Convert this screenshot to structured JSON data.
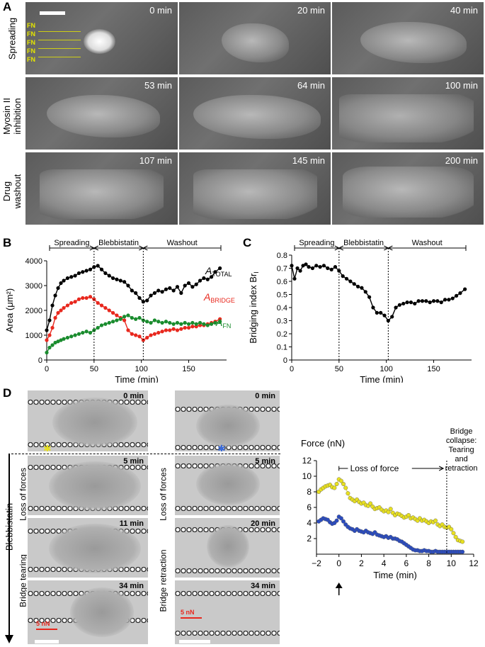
{
  "panels": {
    "A": "A",
    "B": "B",
    "C": "C",
    "D": "D"
  },
  "panel_a": {
    "rows": [
      {
        "label_line1": "Spreading",
        "label_line2": "",
        "times": [
          "0 min",
          "20 min",
          "40 min"
        ]
      },
      {
        "label_line1": "Myosin II",
        "label_line2": "inhibition",
        "times": [
          "53 min",
          "64 min",
          "100 min"
        ]
      },
      {
        "label_line1": "Drug",
        "label_line2": "washout",
        "times": [
          "107 min",
          "145 min",
          "200 min"
        ]
      }
    ],
    "fn_labels": [
      "FN",
      "FN",
      "FN",
      "FN",
      "FN"
    ]
  },
  "chart_data": [
    {
      "type": "line",
      "panel": "B",
      "xlabel": "Time (min)",
      "ylabel": "Area (μm²)",
      "xlim": [
        0,
        190
      ],
      "ylim": [
        0,
        4000
      ],
      "xticks": [
        "0",
        "50",
        "100",
        "150"
      ],
      "yticks": [
        "0",
        "1000",
        "2000",
        "3000",
        "4000"
      ],
      "phases": [
        "Spreading",
        "Blebbistatin",
        "Washout"
      ],
      "phase_bounds": [
        50,
        102
      ],
      "series": [
        {
          "name": "A",
          "subscript": "TOTAL",
          "color": "#000000",
          "x": [
            0,
            3,
            6,
            9,
            12,
            15,
            18,
            22,
            26,
            30,
            34,
            38,
            42,
            46,
            50,
            54,
            58,
            62,
            66,
            70,
            74,
            78,
            82,
            86,
            90,
            94,
            98,
            102,
            106,
            110,
            114,
            118,
            122,
            126,
            130,
            134,
            138,
            142,
            146,
            150,
            154,
            158,
            162,
            166,
            170,
            174,
            178,
            183
          ],
          "y": [
            1200,
            1600,
            2200,
            2600,
            2900,
            3100,
            3200,
            3300,
            3350,
            3400,
            3500,
            3550,
            3600,
            3650,
            3750,
            3800,
            3650,
            3500,
            3400,
            3300,
            3250,
            3200,
            3150,
            3000,
            2800,
            2700,
            2500,
            2350,
            2400,
            2600,
            2700,
            2800,
            2750,
            2850,
            2900,
            2800,
            2950,
            2700,
            3000,
            3100,
            2950,
            3050,
            3200,
            3300,
            3250,
            3350,
            3550,
            3700
          ]
        },
        {
          "name": "A",
          "subscript": "BRIDGE",
          "color": "#e8281e",
          "x": [
            0,
            3,
            6,
            9,
            12,
            15,
            18,
            22,
            26,
            30,
            34,
            38,
            42,
            46,
            50,
            54,
            58,
            62,
            66,
            70,
            74,
            78,
            82,
            86,
            90,
            94,
            98,
            102,
            106,
            110,
            114,
            118,
            122,
            126,
            130,
            134,
            138,
            142,
            146,
            150,
            154,
            158,
            162,
            166,
            170,
            174,
            178,
            183
          ],
          "y": [
            800,
            1000,
            1300,
            1700,
            1900,
            2000,
            2100,
            2200,
            2300,
            2350,
            2450,
            2500,
            2500,
            2550,
            2450,
            2300,
            2200,
            2100,
            2000,
            1900,
            1800,
            1700,
            1600,
            1200,
            1050,
            1000,
            950,
            800,
            900,
            1000,
            1050,
            1100,
            1150,
            1200,
            1200,
            1250,
            1200,
            1250,
            1300,
            1300,
            1350,
            1350,
            1400,
            1400,
            1450,
            1500,
            1550,
            1650
          ]
        },
        {
          "name": "A",
          "subscript": "FN",
          "color": "#1a8c2e",
          "x": [
            0,
            3,
            6,
            9,
            12,
            15,
            18,
            22,
            26,
            30,
            34,
            38,
            42,
            46,
            50,
            54,
            58,
            62,
            66,
            70,
            74,
            78,
            82,
            86,
            90,
            94,
            98,
            102,
            106,
            110,
            114,
            118,
            122,
            126,
            130,
            134,
            138,
            142,
            146,
            150,
            154,
            158,
            162,
            166,
            170,
            174,
            178,
            183
          ],
          "y": [
            300,
            500,
            600,
            700,
            750,
            800,
            850,
            900,
            950,
            1000,
            1050,
            1100,
            1150,
            1100,
            1200,
            1300,
            1400,
            1450,
            1500,
            1550,
            1600,
            1650,
            1750,
            1800,
            1700,
            1650,
            1700,
            1600,
            1550,
            1500,
            1600,
            1550,
            1500,
            1550,
            1500,
            1450,
            1500,
            1450,
            1500,
            1450,
            1500,
            1450,
            1500,
            1450,
            1400,
            1450,
            1500,
            1550
          ]
        }
      ]
    },
    {
      "type": "line",
      "panel": "C",
      "xlabel": "Time (min)",
      "ylabel": "Bridging index Br",
      "ylabel_sub": "I",
      "xlim": [
        0,
        190
      ],
      "ylim": [
        0,
        0.8
      ],
      "xticks": [
        "0",
        "50",
        "100",
        "150"
      ],
      "yticks": [
        "0",
        "0.1",
        "0.2",
        "0.3",
        "0.4",
        "0.5",
        "0.6",
        "0.7",
        "0.8"
      ],
      "phases": [
        "Spreading",
        "Blebbistatin",
        "Washout"
      ],
      "phase_bounds": [
        50,
        102
      ],
      "series": [
        {
          "color": "#000000",
          "x": [
            0,
            3,
            6,
            9,
            12,
            15,
            18,
            22,
            26,
            30,
            34,
            38,
            42,
            46,
            50,
            54,
            58,
            62,
            66,
            70,
            74,
            78,
            82,
            86,
            90,
            94,
            98,
            102,
            106,
            110,
            114,
            118,
            122,
            126,
            130,
            134,
            138,
            142,
            146,
            150,
            154,
            158,
            162,
            166,
            170,
            174,
            178,
            183
          ],
          "y": [
            0.72,
            0.62,
            0.7,
            0.68,
            0.72,
            0.73,
            0.71,
            0.7,
            0.72,
            0.71,
            0.72,
            0.7,
            0.69,
            0.71,
            0.68,
            0.64,
            0.62,
            0.6,
            0.58,
            0.56,
            0.55,
            0.52,
            0.48,
            0.4,
            0.36,
            0.36,
            0.34,
            0.3,
            0.33,
            0.4,
            0.42,
            0.43,
            0.44,
            0.44,
            0.43,
            0.45,
            0.45,
            0.45,
            0.44,
            0.45,
            0.45,
            0.44,
            0.46,
            0.46,
            0.47,
            0.49,
            0.51,
            0.54
          ]
        }
      ]
    },
    {
      "type": "line",
      "panel": "D",
      "ylabel": "Force (nN)",
      "xlabel": "Time (min)",
      "xlim": [
        -2,
        12
      ],
      "ylim": [
        0,
        12
      ],
      "xticks": [
        "−2",
        "0",
        "2",
        "4",
        "6",
        "8",
        "10",
        "12"
      ],
      "yticks": [
        "2",
        "4",
        "6",
        "8",
        "10",
        "12"
      ],
      "annotations": {
        "loss": "Loss of force",
        "collapse": "Bridge collapse: Tearing and retraction",
        "arrow": "Blebbistatin"
      },
      "series": [
        {
          "color": "#e8e020",
          "x": [
            -1.8,
            -1.6,
            -1.4,
            -1.2,
            -1.0,
            -0.8,
            -0.6,
            -0.4,
            -0.2,
            0,
            0.2,
            0.4,
            0.6,
            0.8,
            1.0,
            1.2,
            1.4,
            1.6,
            1.8,
            2.0,
            2.2,
            2.4,
            2.6,
            2.8,
            3.0,
            3.2,
            3.4,
            3.6,
            3.8,
            4.0,
            4.2,
            4.4,
            4.6,
            4.8,
            5.0,
            5.2,
            5.4,
            5.6,
            5.8,
            6.0,
            6.2,
            6.4,
            6.6,
            6.8,
            7.0,
            7.2,
            7.4,
            7.6,
            7.8,
            8.0,
            8.2,
            8.4,
            8.6,
            8.8,
            9.0,
            9.2,
            9.4,
            9.6,
            9.8,
            10.0,
            10.2,
            10.4,
            10.6,
            10.8,
            11.0
          ],
          "y": [
            8.0,
            8.3,
            8.5,
            8.7,
            8.8,
            8.9,
            8.6,
            8.5,
            9.0,
            9.6,
            9.4,
            9.0,
            8.5,
            7.8,
            7.2,
            7.0,
            6.8,
            7.0,
            6.7,
            6.5,
            6.6,
            6.3,
            6.2,
            6.5,
            6.1,
            5.8,
            5.9,
            6.0,
            5.7,
            5.5,
            5.6,
            5.4,
            5.8,
            5.3,
            5.0,
            5.2,
            5.1,
            4.9,
            4.7,
            4.8,
            5.0,
            4.6,
            4.7,
            4.5,
            4.3,
            4.6,
            4.3,
            4.4,
            4.2,
            4.0,
            4.2,
            4.1,
            4.3,
            3.8,
            3.6,
            3.8,
            3.5,
            3.4,
            3.5,
            3.2,
            2.7,
            2.2,
            1.8,
            1.7,
            1.6
          ]
        },
        {
          "color": "#2a4bbf",
          "x": [
            -1.8,
            -1.6,
            -1.4,
            -1.2,
            -1.0,
            -0.8,
            -0.6,
            -0.4,
            -0.2,
            0,
            0.2,
            0.4,
            0.6,
            0.8,
            1.0,
            1.2,
            1.4,
            1.6,
            1.8,
            2.0,
            2.2,
            2.4,
            2.6,
            2.8,
            3.0,
            3.2,
            3.4,
            3.6,
            3.8,
            4.0,
            4.2,
            4.4,
            4.6,
            4.8,
            5.0,
            5.2,
            5.4,
            5.6,
            5.8,
            6.0,
            6.2,
            6.4,
            6.6,
            6.8,
            7.0,
            7.2,
            7.4,
            7.6,
            7.8,
            8.0,
            8.2,
            8.4,
            8.6,
            8.8,
            9.0,
            9.2,
            9.4,
            9.6,
            9.8,
            10.0,
            10.2,
            10.4,
            10.6,
            10.8,
            11.0
          ],
          "y": [
            4.2,
            4.4,
            4.6,
            4.5,
            4.4,
            4.1,
            3.9,
            4.0,
            4.3,
            4.8,
            4.6,
            4.2,
            3.8,
            3.5,
            3.3,
            3.2,
            3.0,
            3.2,
            3.0,
            2.9,
            2.8,
            3.0,
            2.8,
            2.7,
            2.6,
            2.8,
            2.5,
            2.4,
            2.3,
            2.2,
            2.3,
            2.1,
            2.2,
            2.0,
            2.0,
            1.9,
            1.7,
            1.6,
            1.4,
            1.2,
            1.0,
            0.8,
            0.6,
            0.5,
            0.5,
            0.4,
            0.4,
            0.5,
            0.4,
            0.4,
            0.3,
            0.3,
            0.4,
            0.3,
            0.3,
            0.3,
            0.3,
            0.3,
            0.3,
            0.3,
            0.3,
            0.3,
            0.3,
            0.3,
            0.3
          ]
        }
      ]
    }
  ],
  "panel_d": {
    "left_column": {
      "times": [
        "0 min",
        "5 min",
        "11 min",
        "34 min"
      ],
      "side_label_top": "Loss of forces",
      "side_label_bottom": "Bridge tearing",
      "scale_label": "5 nN"
    },
    "right_column": {
      "times": [
        "0 min",
        "5 min",
        "20 min",
        "34 min"
      ],
      "side_label_top": "Loss of forces",
      "side_label_bottom": "Bridge retraction",
      "scale_label": "5 nN"
    },
    "vertical_label": "Blebbistatin"
  }
}
